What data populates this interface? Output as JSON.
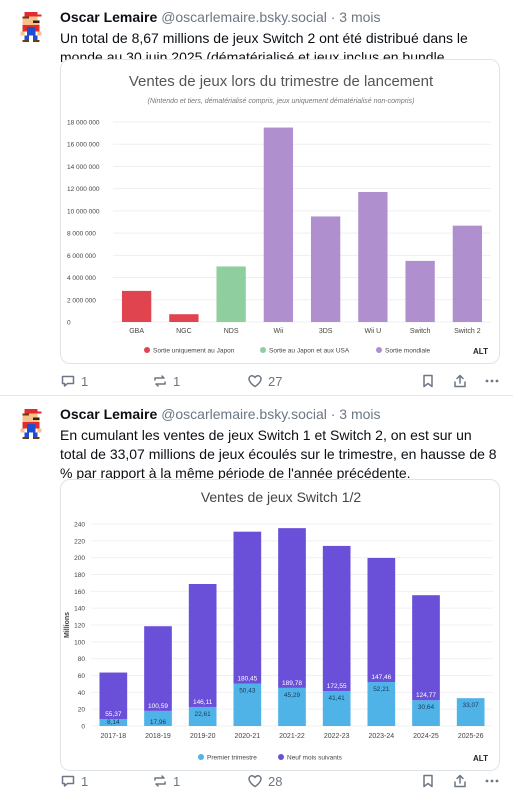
{
  "posts": [
    {
      "author": {
        "name": "Oscar Lemaire",
        "handle": "@oscarlemaire.bsky.social",
        "time": "· 3 mois"
      },
      "text": "Un total de 8,67 millions de jeux Switch 2 ont été distribué dans le monde au 30 juin 2025 (dématérialisé et jeux inclus en bundle compris).",
      "alt_label": "ALT",
      "actions": {
        "reply": "1",
        "repost": "1",
        "like": "27"
      }
    },
    {
      "author": {
        "name": "Oscar Lemaire",
        "handle": "@oscarlemaire.bsky.social",
        "time": "· 3 mois"
      },
      "text": "En cumulant les ventes de jeux Switch 1 et Switch 2, on est sur un total de 33,07 millions de jeux écoulés sur le trimestre, en hausse de 8 % par rapport à la même période de l'année précédente.",
      "alt_label": "ALT",
      "actions": {
        "reply": "1",
        "repost": "1",
        "like": "28"
      }
    }
  ],
  "chart_data": [
    {
      "type": "bar",
      "title": "Ventes de jeux lors du trimestre de lancement",
      "subtitle": "(Nintendo et tiers, dématérialisé compris, jeux uniquement dématérialisé non-compris)",
      "categories": [
        "GBA",
        "NGC",
        "NDS",
        "Wii",
        "3DS",
        "Wii U",
        "Switch",
        "Switch 2"
      ],
      "values": [
        2800000,
        700000,
        5000000,
        17500000,
        9500000,
        11700000,
        5500000,
        8670000
      ],
      "colors": [
        "#e0444e",
        "#e0444e",
        "#8fce9f",
        "#b08fce",
        "#b08fce",
        "#b08fce",
        "#b08fce",
        "#b08fce"
      ],
      "ylim": [
        0,
        18000000
      ],
      "yticks": [
        "0",
        "2 000 000",
        "4 000 000",
        "6 000 000",
        "8 000 000",
        "10 000 000",
        "12 000 000",
        "14 000 000",
        "16 000 000",
        "18 000 000"
      ],
      "ytick_values": [
        0,
        2000000,
        4000000,
        6000000,
        8000000,
        10000000,
        12000000,
        14000000,
        16000000,
        18000000
      ],
      "legend": [
        {
          "label": "Sortie uniquement au Japon",
          "color": "#e0444e"
        },
        {
          "label": "Sortie au Japon et aux USA",
          "color": "#8fce9f"
        },
        {
          "label": "Sortie mondiale",
          "color": "#b08fce"
        }
      ],
      "legend_position": "bottom"
    },
    {
      "type": "bar",
      "stacked": true,
      "title": "Ventes de jeux Switch 1/2",
      "ylabel": "Millions",
      "categories": [
        "2017-18",
        "2018-19",
        "2019-20",
        "2020-21",
        "2021-22",
        "2022-23",
        "2023-24",
        "2024-25",
        "2025-26"
      ],
      "series": [
        {
          "name": "Premier trimestre",
          "color": "#4fb3e8",
          "values": [
            8.14,
            17.96,
            22.61,
            50.43,
            45.29,
            41.41,
            52.21,
            30.64,
            33.07
          ]
        },
        {
          "name": "Neuf mois suivants",
          "color": "#6a4fd8",
          "values": [
            55.37,
            100.59,
            146.11,
            180.45,
            189.78,
            172.55,
            147.46,
            124.77,
            null
          ]
        }
      ],
      "value_labels": {
        "first": [
          "8,14",
          "17,96",
          "22,61",
          "50,43",
          "45,29",
          "41,41",
          "52,21",
          "30,64",
          "33,07"
        ],
        "second": [
          "55,37",
          "100,59",
          "146,11",
          "180,45",
          "189,78",
          "172,55",
          "147,46",
          "124,77",
          ""
        ]
      },
      "ylim": [
        0,
        240
      ],
      "yticks": [
        "0",
        "20",
        "40",
        "60",
        "80",
        "100",
        "120",
        "140",
        "160",
        "180",
        "200",
        "220",
        "240"
      ],
      "ytick_values": [
        0,
        20,
        40,
        60,
        80,
        100,
        120,
        140,
        160,
        180,
        200,
        220,
        240
      ],
      "legend_position": "bottom"
    }
  ]
}
